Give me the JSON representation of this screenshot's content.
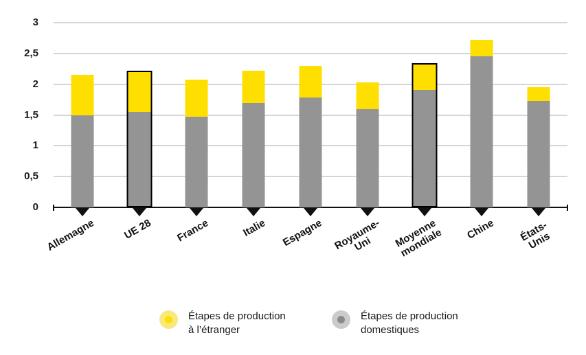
{
  "chart_data": {
    "type": "bar",
    "stacked": true,
    "title": "",
    "xlabel": "",
    "ylabel": "",
    "categories": [
      "Allemagne",
      "UE 28",
      "France",
      "Italie",
      "Espagne",
      "Royaume-Uni",
      "Moyenne\nmondiale",
      "Chine",
      "États-Unis"
    ],
    "series": [
      {
        "name": "Étapes de production domestiques",
        "color": "#949494",
        "values": [
          1.5,
          1.53,
          1.47,
          1.7,
          1.78,
          1.6,
          1.88,
          2.45,
          1.73
        ]
      },
      {
        "name": "Étapes de production à l’étranger",
        "color": "#FFDF00",
        "values": [
          0.65,
          0.64,
          0.6,
          0.52,
          0.52,
          0.43,
          0.42,
          0.27,
          0.22
        ]
      }
    ],
    "totals": [
      2.15,
      2.17,
      2.07,
      2.22,
      2.3,
      2.03,
      2.3,
      2.72,
      1.95
    ],
    "outlined_categories": [
      "UE 28",
      "Moyenne\nmondiale"
    ],
    "ylim": [
      0,
      3
    ],
    "grid": true,
    "legend_position": "bottom",
    "yticks": [
      {
        "value": 0,
        "label": "0"
      },
      {
        "value": 0.5,
        "label": "0,5"
      },
      {
        "value": 1,
        "label": "1"
      },
      {
        "value": 1.5,
        "label": "1,5"
      },
      {
        "value": 2,
        "label": "2"
      },
      {
        "value": 2.5,
        "label": "2,5"
      },
      {
        "value": 3,
        "label": "3"
      }
    ]
  },
  "legend": {
    "items": [
      {
        "lines": [
          "Étapes de production",
          "à l’étranger"
        ],
        "dot_color": "#FFDF00",
        "halo_color": "#F9E87E"
      },
      {
        "lines": [
          "Étapes de production",
          "domestiques"
        ],
        "dot_color": "#8A8A8A",
        "halo_color": "#CBCBCB"
      }
    ]
  },
  "styles": {
    "gridline_color": "#ABABAB",
    "axis_color": "#111111",
    "outline_color": "#000000",
    "text_color": "#1A1A1A"
  }
}
